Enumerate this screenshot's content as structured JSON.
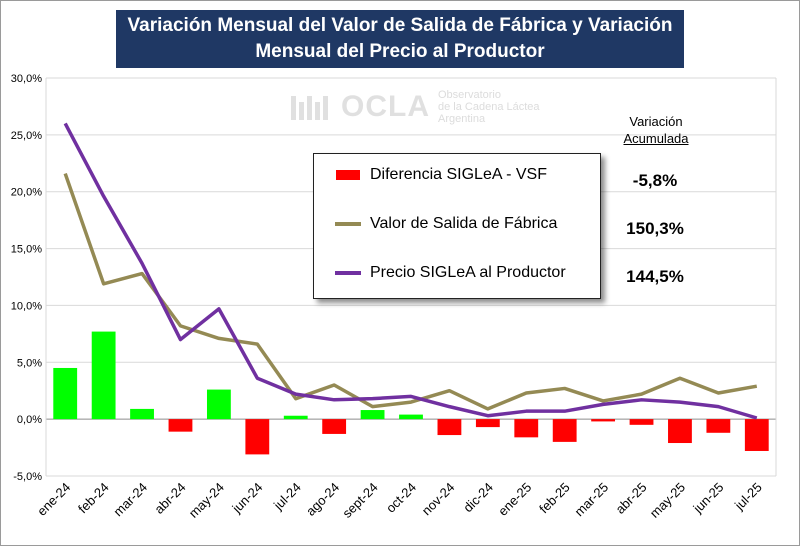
{
  "title": {
    "line1": "Variación Mensual del Valor de Salida de Fábrica y Variación",
    "line2": "Mensual del Precio al Productor"
  },
  "watermark": {
    "logo": "OCLA",
    "line1": "Observatorio",
    "line2": "de la Cadena Láctea",
    "line3": "Argentina"
  },
  "accumulated": {
    "header_line1": "Variación",
    "header_line2": "Acumulada",
    "diff": "-5,8%",
    "vsf": "150,3%",
    "price": "144,5%"
  },
  "colors": {
    "bar_positive": "#00ff00",
    "bar_negative": "#ff0000",
    "vsf_line": "#948a54",
    "price_line": "#7030a0",
    "title_bg": "#1f3864"
  },
  "chart_data": {
    "type": "bar",
    "title": "Variación Mensual del Valor de Salida de Fábrica y Variación Mensual del Precio al Productor",
    "categories": [
      "ene-24",
      "feb-24",
      "mar-24",
      "abr-24",
      "may-24",
      "jun-24",
      "jul-24",
      "ago-24",
      "sept-24",
      "oct-24",
      "nov-24",
      "dic-24",
      "ene-25",
      "feb-25",
      "mar-25",
      "abr-25",
      "may-25",
      "jun-25",
      "jul-25"
    ],
    "ylim": [
      -5,
      30
    ],
    "yticks": [
      -5,
      0,
      5,
      10,
      15,
      20,
      25,
      30
    ],
    "ytick_labels": [
      "-5,0%",
      "0,0%",
      "5,0%",
      "10,0%",
      "15,0%",
      "20,0%",
      "25,0%",
      "30,0%"
    ],
    "grid": true,
    "series": [
      {
        "name": "Diferencia SIGLeA - VSF",
        "type": "bar",
        "values": [
          4.5,
          7.7,
          0.9,
          -1.1,
          2.6,
          -3.1,
          0.3,
          -1.3,
          0.8,
          0.4,
          -1.4,
          -0.7,
          -1.6,
          -2.0,
          -0.2,
          -0.5,
          -2.1,
          -1.2,
          -2.8
        ]
      },
      {
        "name": "Valor de Salida de Fábrica",
        "type": "line",
        "values": [
          21.6,
          11.9,
          12.8,
          8.2,
          7.1,
          6.6,
          1.8,
          3.0,
          1.1,
          1.5,
          2.5,
          0.9,
          2.3,
          2.7,
          1.6,
          2.2,
          3.6,
          2.3,
          2.9
        ]
      },
      {
        "name": "Precio SIGLeA al Productor",
        "type": "line",
        "values": [
          26.0,
          19.6,
          13.7,
          7.0,
          9.7,
          3.6,
          2.2,
          1.7,
          1.8,
          2.0,
          1.1,
          0.3,
          0.7,
          0.7,
          1.3,
          1.7,
          1.5,
          1.1,
          0.1
        ]
      }
    ]
  }
}
